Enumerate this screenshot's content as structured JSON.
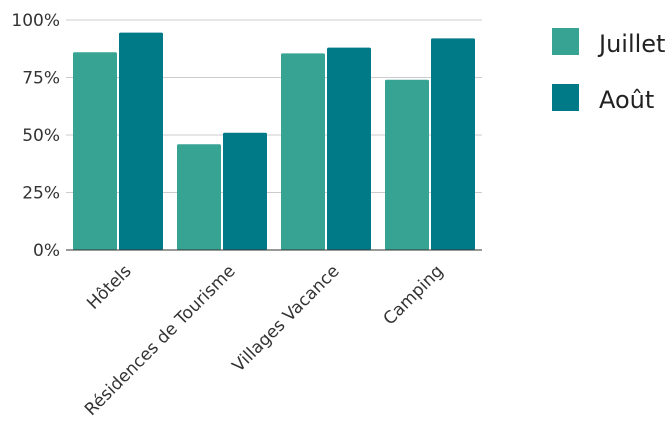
{
  "chart_data": {
    "type": "bar",
    "categories": [
      "Hôtels",
      "Résidences de Tourisme",
      "Villages Vacance",
      "Camping"
    ],
    "series": [
      {
        "name": "Juillet",
        "values": [
          86,
          46,
          85.5,
          74
        ],
        "color": "#36a393"
      },
      {
        "name": "Août",
        "values": [
          94.5,
          51,
          88,
          92
        ],
        "color": "#007a86"
      }
    ],
    "y_ticks": [
      "0%",
      "25%",
      "50%",
      "75%",
      "100%"
    ],
    "ylim": [
      0,
      100
    ],
    "grid": true,
    "legend_position": "right"
  }
}
